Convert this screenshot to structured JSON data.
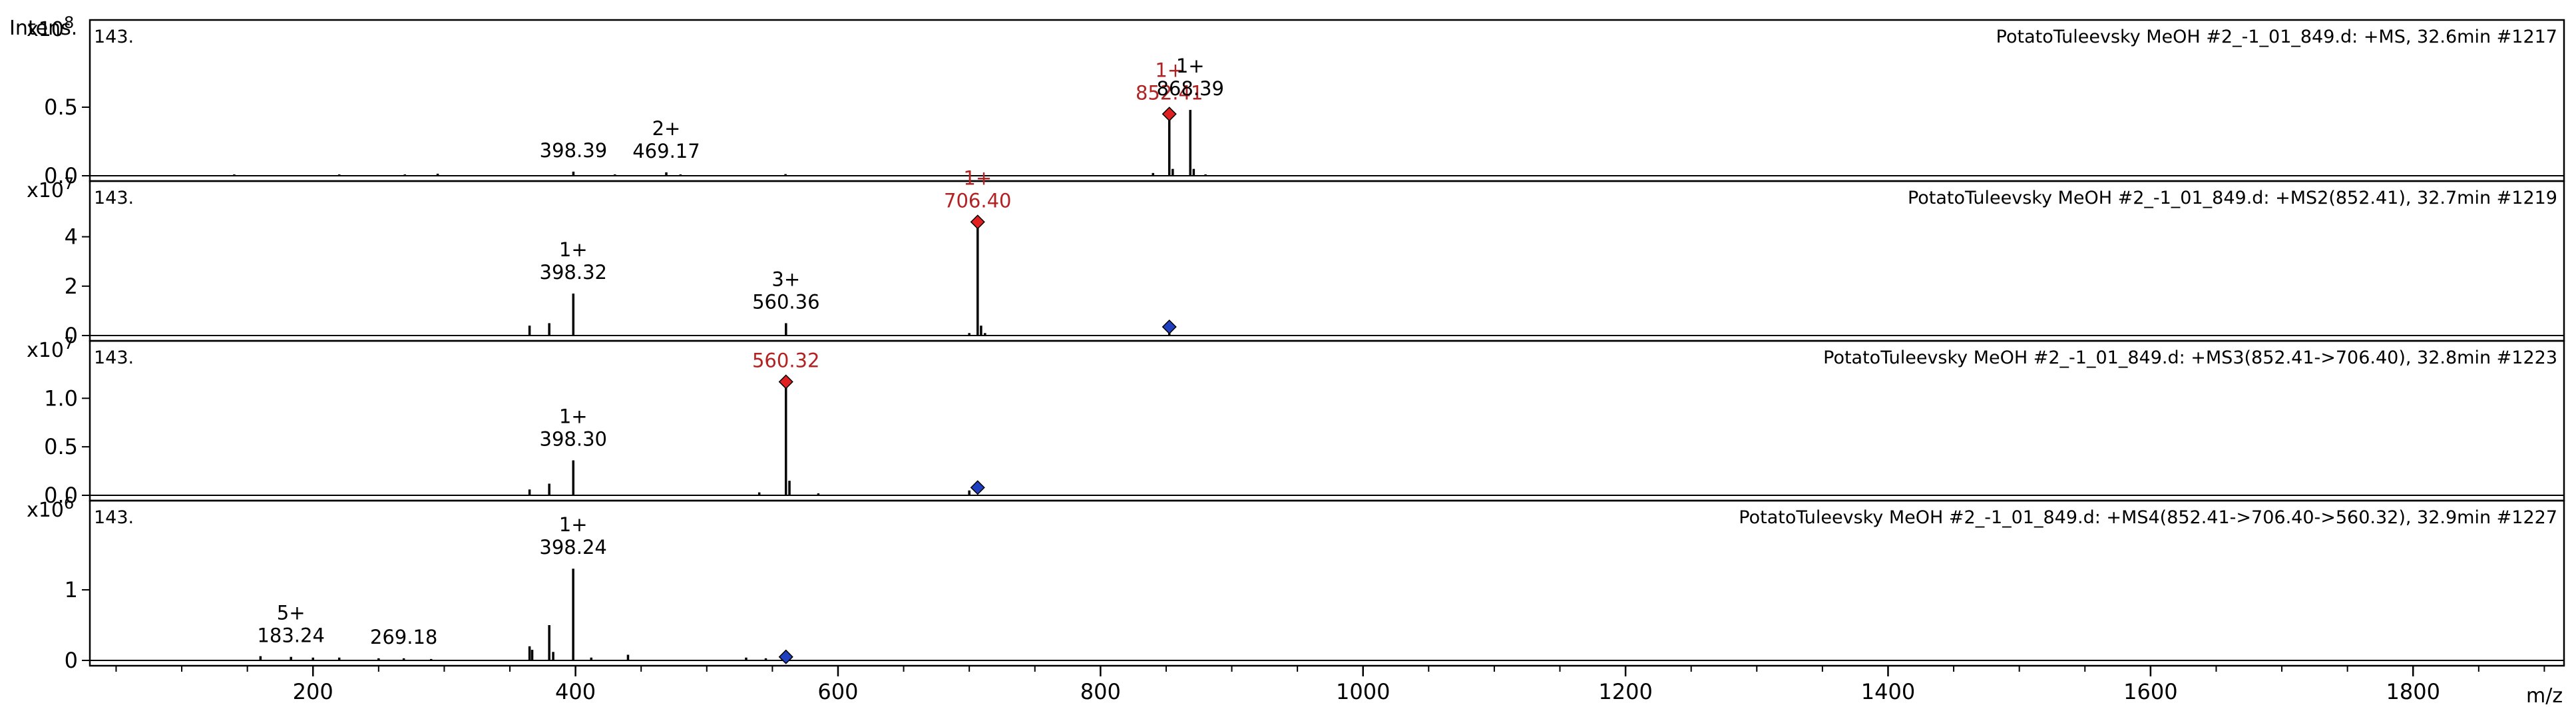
{
  "colors": {
    "precursor": "#b22222",
    "precursor_fill": "#e02020",
    "parent_marker": "#1f3fbf",
    "peak": "#000000",
    "axis": "#000000"
  },
  "y_axis_label": "Intens.",
  "x_axis_unit": "m/z",
  "chart_data": [
    {
      "type": "bar",
      "title": "PotatoTuleevsky MeOH #2_-1_01_849.d: +MS, 32.6min #1217",
      "corner_label": "143.",
      "exponent_label": "x10",
      "exponent_power": "8",
      "xlim": [
        30,
        1915
      ],
      "ylim": [
        0,
        1.0
      ],
      "yticks": [
        {
          "v": 0.0,
          "label": "0.0"
        },
        {
          "v": 0.5,
          "label": "0.5"
        }
      ],
      "peaks": [
        [
          140,
          0.01
        ],
        [
          220,
          0.01
        ],
        [
          270,
          0.01
        ],
        [
          295,
          0.015
        ],
        [
          398.39,
          0.03
        ],
        [
          430,
          0.01
        ],
        [
          469.17,
          0.025
        ],
        [
          480,
          0.01
        ],
        [
          560,
          0.012
        ],
        [
          840,
          0.02
        ],
        [
          852.41,
          0.45
        ],
        [
          855,
          0.05
        ],
        [
          868.39,
          0.48
        ],
        [
          871,
          0.05
        ],
        [
          880,
          0.01
        ]
      ],
      "labels": [
        {
          "mz": 398.39,
          "y": 0.03,
          "mass": "398.39",
          "charge": "",
          "color": "peak"
        },
        {
          "mz": 469.17,
          "y": 0.025,
          "mass": "469.17",
          "charge": "2+",
          "color": "peak"
        },
        {
          "mz": 852.41,
          "y": 0.45,
          "mass": "852.41",
          "charge": "1+",
          "color": "precursor"
        },
        {
          "mz": 868.39,
          "y": 0.48,
          "mass": "868.39",
          "charge": "1+",
          "color": "peak"
        }
      ],
      "precursor": {
        "mz": 852.41,
        "y": 0.45
      },
      "parent_marker": null
    },
    {
      "type": "bar",
      "title": "PotatoTuleevsky MeOH #2_-1_01_849.d: +MS2(852.41), 32.7min #1219",
      "corner_label": "143.",
      "exponent_label": "x10",
      "exponent_power": "7",
      "xlim": [
        30,
        1915
      ],
      "ylim": [
        0,
        5.5
      ],
      "yticks": [
        {
          "v": 0,
          "label": "0"
        },
        {
          "v": 2,
          "label": "2"
        },
        {
          "v": 4,
          "label": "4"
        }
      ],
      "peaks": [
        [
          365,
          0.4
        ],
        [
          380,
          0.5
        ],
        [
          398.32,
          1.7
        ],
        [
          560.36,
          0.5
        ],
        [
          700,
          0.1
        ],
        [
          706.4,
          4.6
        ],
        [
          709,
          0.4
        ],
        [
          712,
          0.1
        ],
        [
          852.41,
          0.1
        ]
      ],
      "labels": [
        {
          "mz": 398.32,
          "y": 1.7,
          "mass": "398.32",
          "charge": "1+",
          "color": "peak"
        },
        {
          "mz": 560.36,
          "y": 0.5,
          "mass": "560.36",
          "charge": "3+",
          "color": "peak"
        },
        {
          "mz": 706.4,
          "y": 4.6,
          "mass": "706.40",
          "charge": "1+",
          "color": "precursor"
        }
      ],
      "precursor": {
        "mz": 706.4,
        "y": 4.6
      },
      "parent_marker": {
        "mz": 852.41,
        "y": 0.35
      }
    },
    {
      "type": "bar",
      "title": "PotatoTuleevsky MeOH #2_-1_01_849.d: +MS3(852.41->706.40), 32.8min #1223",
      "corner_label": "143.",
      "exponent_label": "x10",
      "exponent_power": "7",
      "xlim": [
        30,
        1915
      ],
      "ylim": [
        0,
        1.4
      ],
      "yticks": [
        {
          "v": 0.0,
          "label": "0.0"
        },
        {
          "v": 0.5,
          "label": "0.5"
        },
        {
          "v": 1.0,
          "label": "1.0"
        }
      ],
      "peaks": [
        [
          365,
          0.06
        ],
        [
          380,
          0.12
        ],
        [
          398.3,
          0.36
        ],
        [
          540,
          0.03
        ],
        [
          560.32,
          1.17
        ],
        [
          563,
          0.15
        ],
        [
          585,
          0.02
        ],
        [
          700,
          0.05
        ]
      ],
      "labels": [
        {
          "mz": 398.3,
          "y": 0.36,
          "mass": "398.30",
          "charge": "1+",
          "color": "peak"
        },
        {
          "mz": 560.32,
          "y": 1.17,
          "mass": "560.32",
          "charge": "",
          "color": "precursor"
        }
      ],
      "precursor": {
        "mz": 560.32,
        "y": 1.17
      },
      "parent_marker": {
        "mz": 706.4,
        "y": 0.08
      }
    },
    {
      "type": "bar",
      "title": "PotatoTuleevsky MeOH #2_-1_01_849.d: +MS4(852.41->706.40->560.32), 32.9min #1227",
      "corner_label": "143.",
      "exponent_label": "x10",
      "exponent_power": "6",
      "xlim": [
        30,
        1915
      ],
      "ylim": [
        0,
        2.0
      ],
      "yticks": [
        {
          "v": 0,
          "label": "0"
        },
        {
          "v": 1,
          "label": "1"
        }
      ],
      "peaks": [
        [
          160,
          0.06
        ],
        [
          183.24,
          0.05
        ],
        [
          200,
          0.04
        ],
        [
          220,
          0.04
        ],
        [
          250,
          0.03
        ],
        [
          269.18,
          0.03
        ],
        [
          290,
          0.02
        ],
        [
          365,
          0.2
        ],
        [
          367,
          0.15
        ],
        [
          380,
          0.5
        ],
        [
          383,
          0.12
        ],
        [
          398.24,
          1.3
        ],
        [
          412,
          0.04
        ],
        [
          440,
          0.08
        ],
        [
          530,
          0.04
        ],
        [
          545,
          0.03
        ],
        [
          560.32,
          0.05
        ]
      ],
      "labels": [
        {
          "mz": 183.24,
          "y": 0.05,
          "mass": "183.24",
          "charge": "5+",
          "color": "peak"
        },
        {
          "mz": 269.18,
          "y": 0.03,
          "mass": "269.18",
          "charge": "",
          "color": "peak"
        },
        {
          "mz": 398.24,
          "y": 1.3,
          "mass": "398.24",
          "charge": "1+",
          "color": "peak"
        }
      ],
      "precursor": null,
      "parent_marker": {
        "mz": 560.32,
        "y": 0.05
      }
    }
  ],
  "x_axis": {
    "ticks": [
      {
        "v": 200,
        "label": "200"
      },
      {
        "v": 400,
        "label": "400"
      },
      {
        "v": 600,
        "label": "600"
      },
      {
        "v": 800,
        "label": "800"
      },
      {
        "v": 1000,
        "label": "1000"
      },
      {
        "v": 1200,
        "label": "1200"
      },
      {
        "v": 1400,
        "label": "1400"
      },
      {
        "v": 1600,
        "label": "1600"
      },
      {
        "v": 1800,
        "label": "1800"
      }
    ],
    "minor_step": 50
  }
}
